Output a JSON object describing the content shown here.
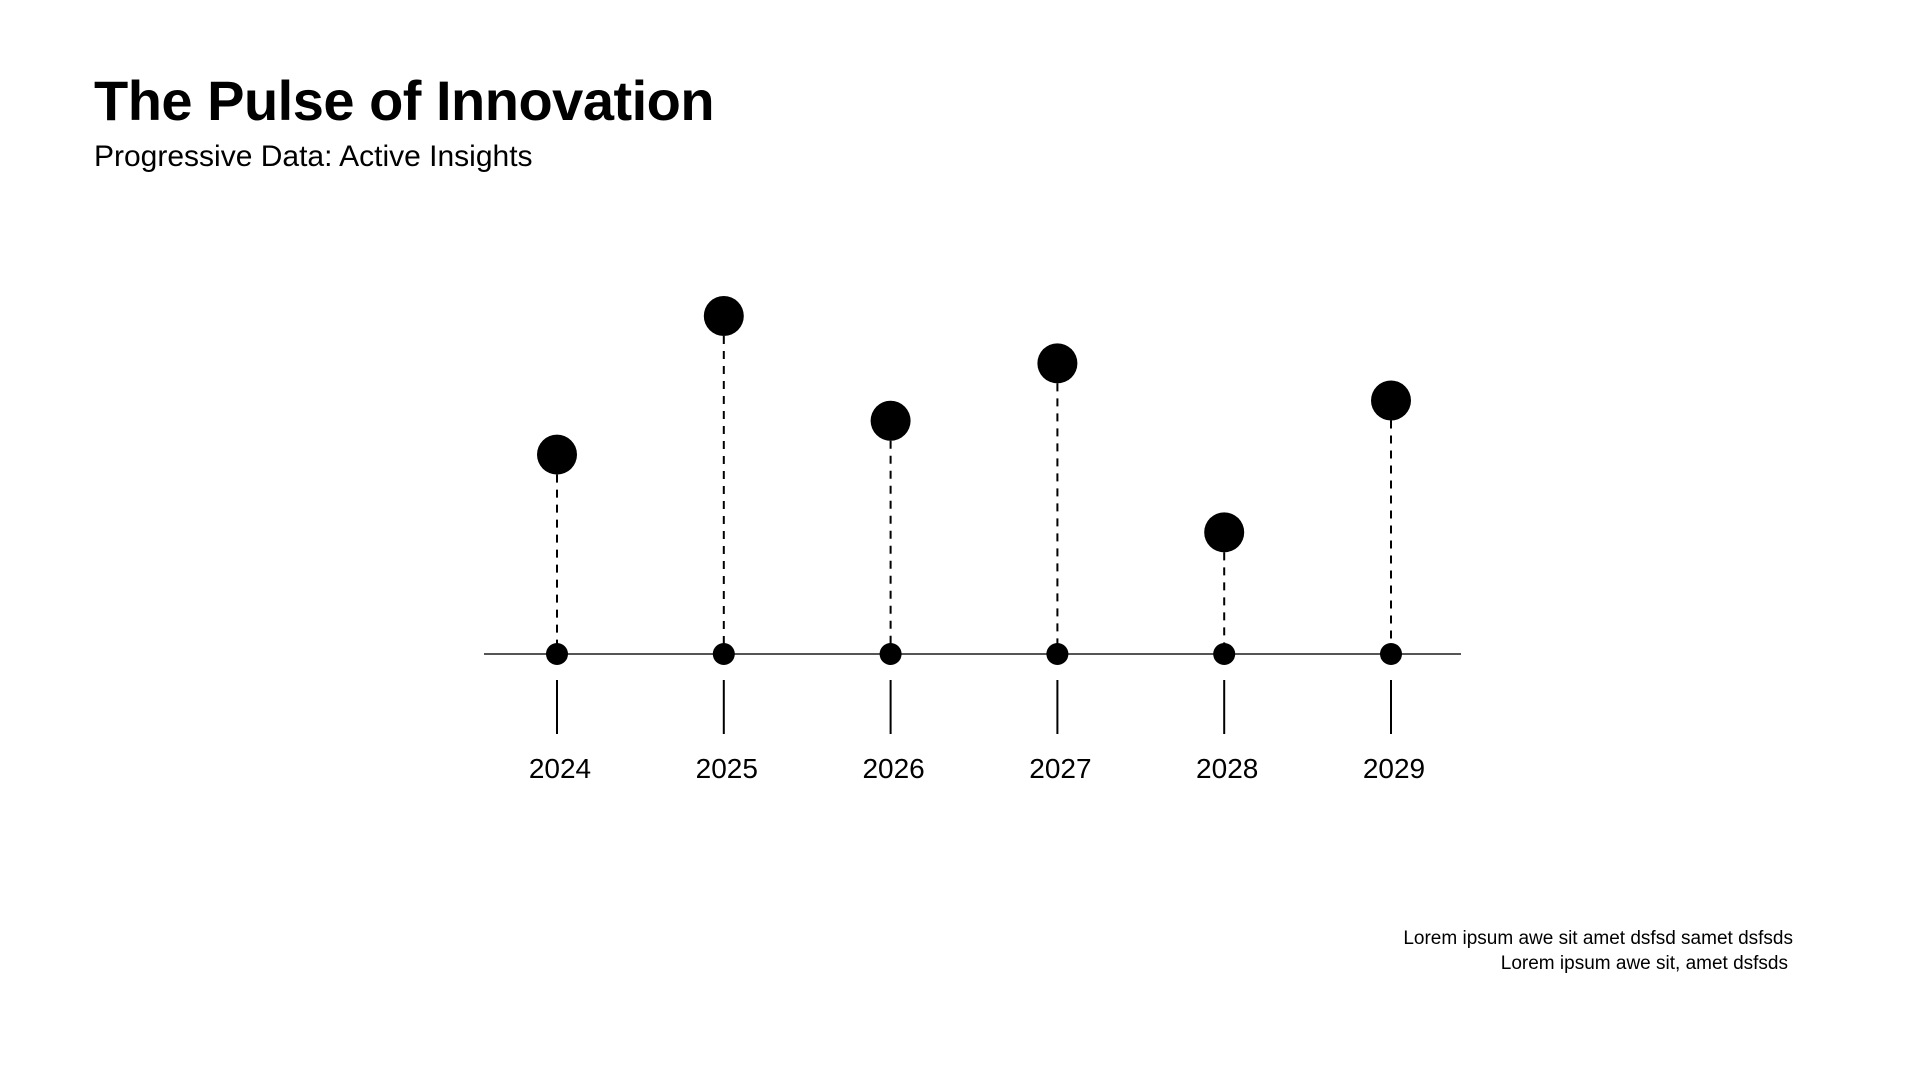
{
  "chart_data": {
    "type": "lollipop",
    "title": "The Pulse of Innovation",
    "subtitle": "Progressive Data: Active Insights",
    "categories": [
      "2024",
      "2025",
      "2026",
      "2027",
      "2028",
      "2029"
    ],
    "values": [
      59,
      100,
      69,
      86,
      36,
      75
    ],
    "ylim": [
      0,
      100
    ],
    "xlabel": "",
    "ylabel": "",
    "grid": false,
    "colors": {
      "marker": "#000000",
      "axis": "#555555"
    }
  },
  "footnote": {
    "line1": "Lorem ipsum awe sit amet dsfsd samet dsfsds",
    "line2": "Lorem ipsum awe sit, amet dsfsds"
  }
}
